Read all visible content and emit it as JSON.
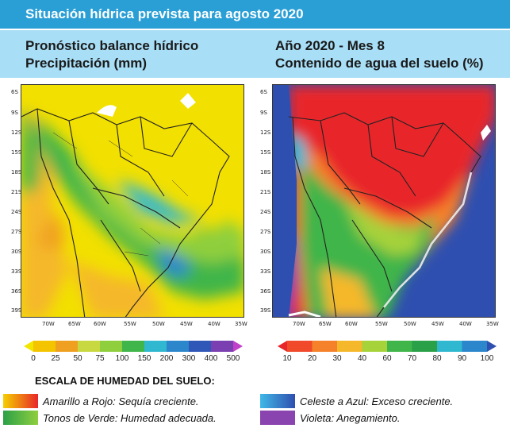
{
  "title": "Situación hídrica prevista para agosto 2020",
  "left_panel": {
    "line1": "Pronóstico balance hídrico",
    "line2": "Precipitación (mm)"
  },
  "right_panel": {
    "line1": "Año 2020 - Mes 8",
    "line2": "Contenido de agua del suelo (%)"
  },
  "lat_labels": [
    "6S",
    "9S",
    "12S",
    "15S",
    "18S",
    "21S",
    "24S",
    "27S",
    "30S",
    "33S",
    "36S",
    "39S"
  ],
  "lon_labels": [
    "70W",
    "65W",
    "60W",
    "55W",
    "50W",
    "45W",
    "40W",
    "35W"
  ],
  "left_colorbar": {
    "ticks": [
      "0",
      "25",
      "50",
      "75",
      "100",
      "150",
      "200",
      "300",
      "400",
      "500"
    ],
    "colors": [
      "#f2e600",
      "#f5c400",
      "#f0a020",
      "#c8d840",
      "#8fcf3e",
      "#3fb54a",
      "#30b8d0",
      "#2b86cc",
      "#2f57b8",
      "#7a3fb0",
      "#c040c8"
    ]
  },
  "right_colorbar": {
    "ticks": [
      "10",
      "20",
      "30",
      "40",
      "60",
      "70",
      "80",
      "90",
      "100"
    ],
    "colors": [
      "#e8262a",
      "#f04a2a",
      "#f5822a",
      "#f5b82a",
      "#a6d23a",
      "#3fb54a",
      "#2aa048",
      "#30b8d0",
      "#2b86cc",
      "#2f4fb0"
    ]
  },
  "legend": {
    "title": "ESCALA DE HUMEDAD DEL SUELO:",
    "items": [
      {
        "text": "Amarillo a Rojo: Sequía creciente.",
        "colors": [
          "#f5d000",
          "#e8262a"
        ]
      },
      {
        "text": "Tonos de Verde: Humedad adecuada.",
        "colors": [
          "#2aa048",
          "#8fcf3e"
        ]
      },
      {
        "text": "Celeste a Azul: Exceso creciente.",
        "colors": [
          "#3fb8e6",
          "#2f4fb0"
        ]
      },
      {
        "text": "Violeta: Anegamiento.",
        "colors": [
          "#8a44b0",
          "#8a44b0"
        ]
      }
    ]
  }
}
